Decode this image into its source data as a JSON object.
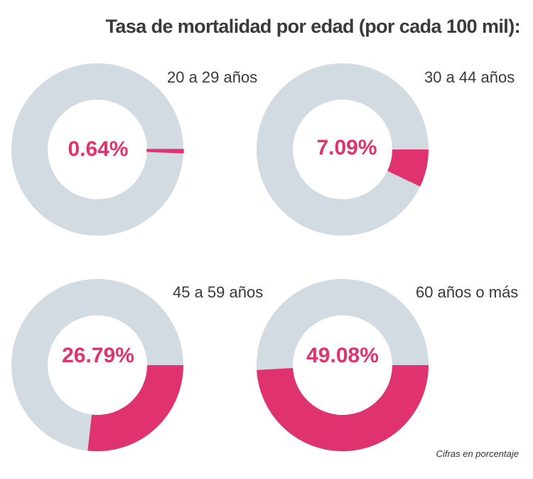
{
  "title": "Tasa de mortalidad por edad (por cada 100 mil):",
  "footnote": "Cifras en porcentaje",
  "colors": {
    "accent": "#e0326e",
    "track": "#d2dae2",
    "text": "#3a3a3a"
  },
  "chart_data": [
    {
      "type": "pie",
      "style": "donut",
      "label": "20 a 29 años",
      "value": 0.64,
      "value_label": "0.64%",
      "max": 100
    },
    {
      "type": "pie",
      "style": "donut",
      "label": "30 a 44 años",
      "value": 7.09,
      "value_label": "7.09%",
      "max": 100
    },
    {
      "type": "pie",
      "style": "donut",
      "label": "45 a 59 años",
      "value": 26.79,
      "value_label": "26.79%",
      "max": 100
    },
    {
      "type": "pie",
      "style": "donut",
      "label": "60 años o más",
      "value": 49.08,
      "value_label": "49.08%",
      "max": 100
    }
  ]
}
